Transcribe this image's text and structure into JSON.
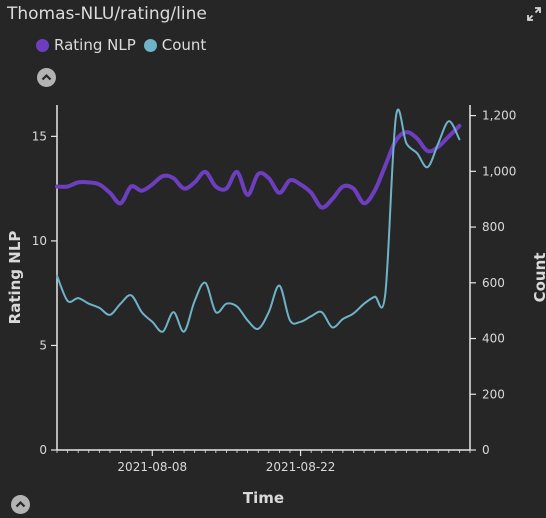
{
  "header": {
    "title": "Thomas-NLU/rating/line"
  },
  "icons": {
    "expand": "expand-arrows-icon",
    "collapse": "chevron-up-icon"
  },
  "legend": [
    {
      "label": "Rating NLP",
      "color": "#6d3fc0"
    },
    {
      "label": "Count",
      "color": "#6fb3c9"
    }
  ],
  "chart_data": {
    "type": "line",
    "title": "Thomas-NLU/rating/line",
    "xlabel": "Time",
    "ylabel": "Rating NLP",
    "y2label": "Count",
    "xlim": [
      "2021-07-30",
      "2021-09-07"
    ],
    "x_ticks": [
      "2021-08-08",
      "2021-08-22"
    ],
    "ylim": [
      0,
      16.5
    ],
    "y_ticks": [
      0,
      5,
      10,
      15
    ],
    "y2lim": [
      0,
      1238
    ],
    "y2_ticks": [
      "0",
      "200",
      "400",
      "600",
      "800",
      "1,000",
      "1,200"
    ],
    "grid": false,
    "legend_position": "top-left",
    "series": [
      {
        "name": "Rating NLP",
        "axis": "left",
        "color": "#6d3fc0",
        "x": [
          "2021-07-30",
          "2021-07-31",
          "2021-08-01",
          "2021-08-02",
          "2021-08-03",
          "2021-08-04",
          "2021-08-05",
          "2021-08-06",
          "2021-08-07",
          "2021-08-08",
          "2021-08-09",
          "2021-08-10",
          "2021-08-11",
          "2021-08-12",
          "2021-08-13",
          "2021-08-14",
          "2021-08-15",
          "2021-08-16",
          "2021-08-17",
          "2021-08-18",
          "2021-08-19",
          "2021-08-20",
          "2021-08-21",
          "2021-08-22",
          "2021-08-23",
          "2021-08-24",
          "2021-08-25",
          "2021-08-26",
          "2021-08-27",
          "2021-08-28",
          "2021-08-29",
          "2021-08-30",
          "2021-08-31",
          "2021-09-01",
          "2021-09-02",
          "2021-09-03",
          "2021-09-04",
          "2021-09-05",
          "2021-09-06"
        ],
        "values": [
          12.6,
          12.6,
          12.8,
          12.8,
          12.7,
          12.3,
          11.8,
          12.6,
          12.4,
          12.7,
          13.1,
          13.0,
          12.5,
          12.8,
          13.3,
          12.6,
          12.5,
          13.3,
          12.2,
          13.2,
          13.0,
          12.3,
          12.9,
          12.7,
          12.3,
          11.6,
          12.0,
          12.6,
          12.5,
          11.8,
          12.4,
          13.6,
          14.8,
          15.2,
          14.9,
          14.3,
          14.5,
          15.0,
          15.5
        ]
      },
      {
        "name": "Count",
        "axis": "right",
        "color": "#6fb3c9",
        "x": [
          "2021-07-30",
          "2021-07-31",
          "2021-08-01",
          "2021-08-02",
          "2021-08-03",
          "2021-08-04",
          "2021-08-05",
          "2021-08-06",
          "2021-08-07",
          "2021-08-08",
          "2021-08-09",
          "2021-08-10",
          "2021-08-11",
          "2021-08-12",
          "2021-08-13",
          "2021-08-14",
          "2021-08-15",
          "2021-08-16",
          "2021-08-17",
          "2021-08-18",
          "2021-08-19",
          "2021-08-20",
          "2021-08-21",
          "2021-08-22",
          "2021-08-23",
          "2021-08-24",
          "2021-08-25",
          "2021-08-26",
          "2021-08-27",
          "2021-08-28",
          "2021-08-29",
          "2021-08-30",
          "2021-08-31",
          "2021-09-01",
          "2021-09-02",
          "2021-09-03",
          "2021-09-04",
          "2021-09-05",
          "2021-09-06"
        ],
        "values": [
          625,
          535,
          545,
          525,
          510,
          485,
          525,
          555,
          495,
          460,
          425,
          495,
          425,
          535,
          600,
          495,
          525,
          515,
          465,
          435,
          495,
          590,
          465,
          460,
          480,
          495,
          440,
          470,
          490,
          525,
          550,
          560,
          1195,
          1100,
          1065,
          1015,
          1100,
          1180,
          1115
        ]
      }
    ]
  }
}
